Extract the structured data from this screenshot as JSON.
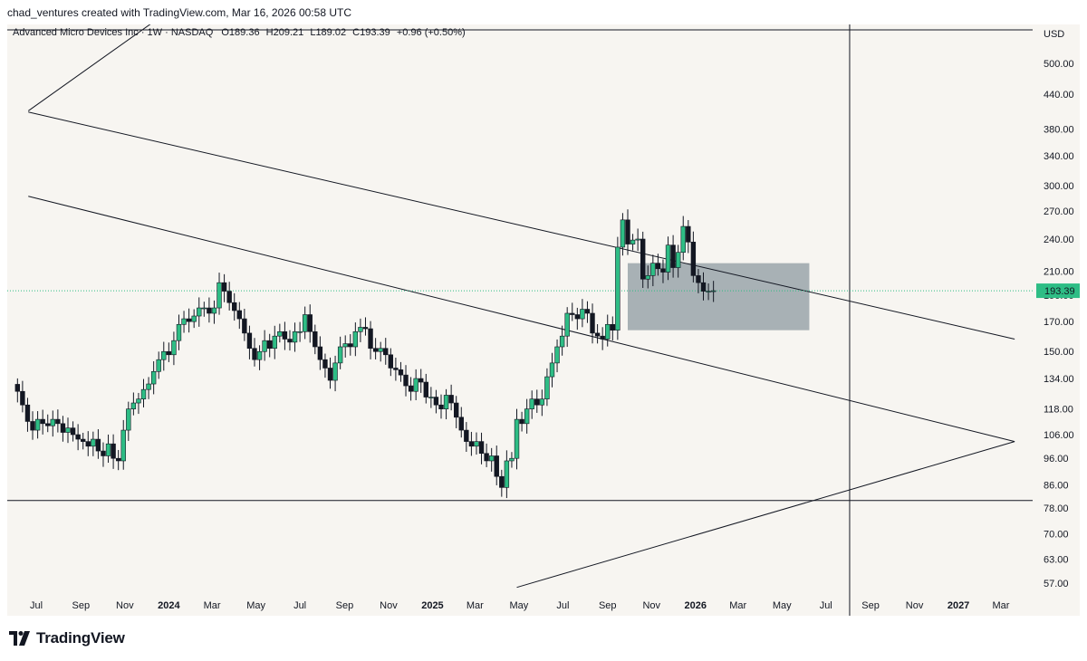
{
  "header": {
    "attribution": "chad_ventures created with TradingView.com, Mar 16, 2026 00:58 UTC"
  },
  "legend": {
    "symbol": "Advanced Micro Devices Inc · 1W · NASDAQ",
    "open_label": "O",
    "open": "189.36",
    "high_label": "H",
    "high": "209.21",
    "low_label": "L",
    "low": "189.02",
    "close_label": "C",
    "close": "193.39",
    "change": "+0.96 (+0.50%)"
  },
  "footer": {
    "brand": "TradingView"
  },
  "colors": {
    "up": "#2ebd85",
    "down": "#131722",
    "bg": "#f7f5f1",
    "box": "#8d9aa0",
    "price_line": "#2ebd85",
    "line": "#131722"
  },
  "chart_data": {
    "type": "candlestick",
    "scale": "log",
    "currency": "USD",
    "last_price": "193.39",
    "y_ticks": [
      "57.00",
      "63.00",
      "70.00",
      "78.00",
      "86.00",
      "96.00",
      "106.00",
      "118.00",
      "134.00",
      "150.00",
      "170.00",
      "190.00",
      "210.00",
      "240.00",
      "270.00",
      "300.00",
      "340.00",
      "380.00",
      "440.00",
      "500.00"
    ],
    "x_ticks": [
      {
        "label": "Jul",
        "date": "2023-07-01"
      },
      {
        "label": "Sep",
        "date": "2023-09-01"
      },
      {
        "label": "Nov",
        "date": "2023-11-01"
      },
      {
        "label": "2024",
        "date": "2024-01-01",
        "bold": true
      },
      {
        "label": "Mar",
        "date": "2024-03-01"
      },
      {
        "label": "May",
        "date": "2024-05-01"
      },
      {
        "label": "Jul",
        "date": "2024-07-01"
      },
      {
        "label": "Sep",
        "date": "2024-09-01"
      },
      {
        "label": "Nov",
        "date": "2024-11-01"
      },
      {
        "label": "2025",
        "date": "2025-01-01",
        "bold": true
      },
      {
        "label": "Mar",
        "date": "2025-03-01"
      },
      {
        "label": "May",
        "date": "2025-05-01"
      },
      {
        "label": "Jul",
        "date": "2025-07-01"
      },
      {
        "label": "Sep",
        "date": "2025-09-01"
      },
      {
        "label": "Nov",
        "date": "2025-11-01"
      },
      {
        "label": "2026",
        "date": "2026-01-01",
        "bold": true
      },
      {
        "label": "Mar",
        "date": "2026-03-01"
      },
      {
        "label": "May",
        "date": "2026-05-01"
      },
      {
        "label": "Jul",
        "date": "2026-07-01"
      },
      {
        "label": "Sep",
        "date": "2026-09-01"
      },
      {
        "label": "Nov",
        "date": "2026-11-01"
      },
      {
        "label": "2027",
        "date": "2027-01-01",
        "bold": true
      },
      {
        "label": "Mar",
        "date": "2027-03-01"
      }
    ],
    "closes": [
      127,
      120,
      112,
      108,
      113,
      111,
      110,
      113,
      111,
      107,
      109,
      106,
      104,
      103,
      101,
      104,
      99,
      97,
      102,
      96,
      95,
      108,
      118,
      121,
      123,
      128,
      131,
      138,
      145,
      150,
      148,
      157,
      168,
      172,
      170,
      174,
      180,
      180,
      176,
      180,
      200,
      193,
      184,
      178,
      172,
      162,
      152,
      145,
      150,
      157,
      152,
      160,
      163,
      158,
      156,
      163,
      163,
      175,
      163,
      153,
      145,
      140,
      133,
      143,
      153,
      155,
      153,
      163,
      166,
      165,
      152,
      150,
      152,
      148,
      140,
      139,
      136,
      130,
      127,
      134,
      132,
      124,
      124,
      120,
      118,
      125,
      121,
      114,
      108,
      103,
      101,
      103,
      98,
      95,
      97,
      89,
      85,
      95,
      96,
      113,
      111,
      118,
      123,
      120,
      123,
      135,
      143,
      153,
      160,
      176,
      175,
      172,
      179,
      176,
      162,
      160,
      158,
      168,
      164,
      232,
      260,
      235,
      239,
      240,
      203,
      206,
      217,
      212,
      209,
      234,
      213,
      227,
      253,
      237,
      206,
      200,
      193,
      193,
      193.39
    ],
    "drawings": {
      "horizontal_support": 80.5,
      "horizontal_top": 580,
      "vertical_line_date": "2026-08-03",
      "zone": {
        "from": "2025-09-29",
        "to": "2026-06-08",
        "top": 217,
        "bottom": 164
      }
    }
  }
}
